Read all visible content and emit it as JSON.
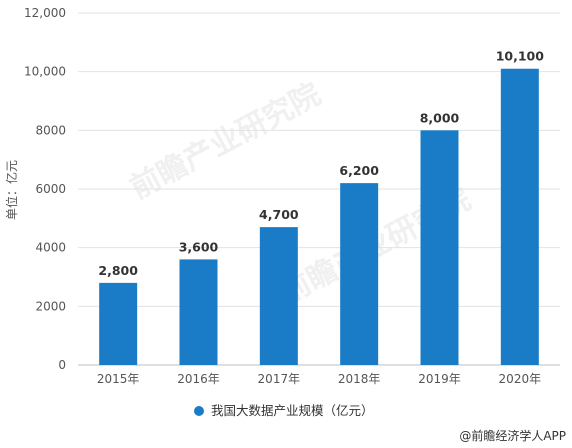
{
  "chart_data": {
    "type": "bar",
    "title": "",
    "xlabel": "",
    "ylabel": "单位：亿元",
    "categories": [
      "2015年",
      "2016年",
      "2017年",
      "2018年",
      "2019年",
      "2020年"
    ],
    "series": [
      {
        "name": "我国大数据产业规模（亿元）",
        "values": [
          2800,
          3600,
          4700,
          6200,
          8000,
          10100
        ]
      }
    ],
    "data_labels": [
      "2,800",
      "3,600",
      "4,700",
      "6,200",
      "8,000",
      "10,100"
    ],
    "ylim": [
      0,
      12000
    ],
    "yticks": [
      0,
      2000,
      4000,
      6000,
      8000,
      10000,
      12000
    ],
    "ytick_labels": [
      "0",
      "2000",
      "4000",
      "6000",
      "8000",
      "10,000",
      "12,000"
    ],
    "grid": true,
    "legend_position": "bottom",
    "bar_color": "#1a7cc7"
  },
  "watermark": "前瞻产业研究院",
  "source": "@前瞻经济学人APP"
}
